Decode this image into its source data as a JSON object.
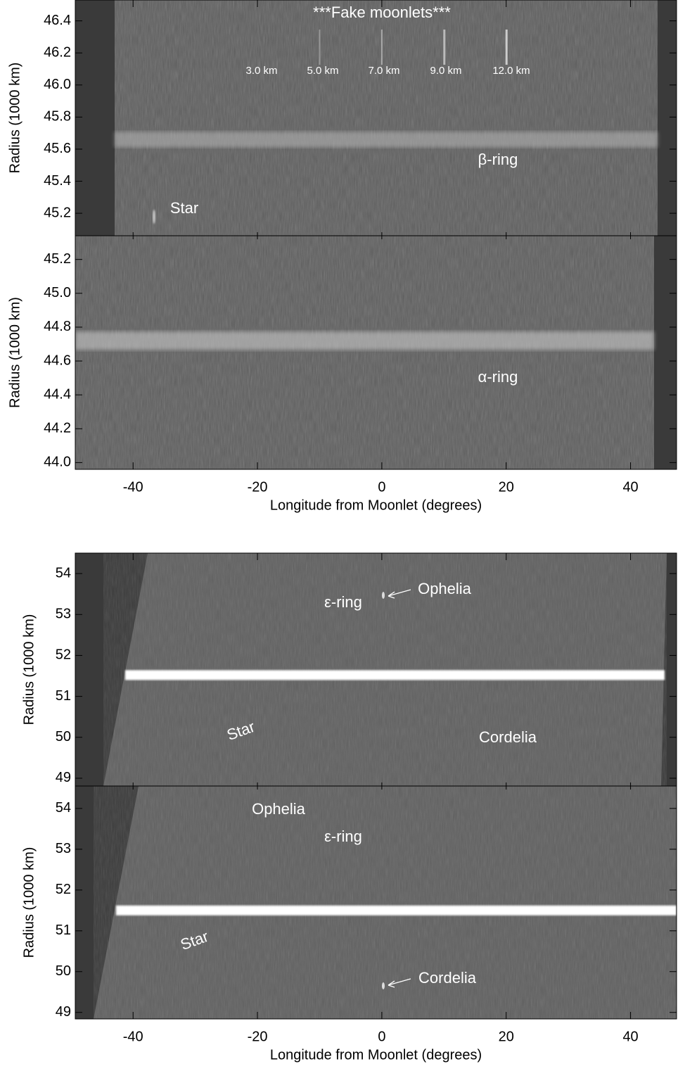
{
  "chart_data": [
    {
      "type": "image",
      "ylabel": "Radius (1000 km)",
      "title": "***Fake moonlets***",
      "annotations": [
        "3.0 km",
        "5.0 km",
        "7.0 km",
        "9.0 km",
        "12.0 km",
        "β-ring",
        "Star"
      ],
      "xlim": [
        -49.3,
        47.4
      ],
      "ylim": [
        45.06,
        46.53
      ],
      "yticks": [
        45.2,
        45.4,
        45.6,
        45.8,
        {
          "value": 46.0,
          "label": "46.0"
        },
        46.2,
        46.4
      ]
    },
    {
      "type": "image",
      "ylabel": "Radius (1000 km)",
      "xlabel": "Longitude from Moonlet (degrees)",
      "annotations": [
        "α-ring"
      ],
      "xlim": [
        -49.3,
        47.4
      ],
      "ylim": [
        43.96,
        45.34
      ],
      "xticks": [
        -40,
        -20,
        0,
        20,
        40
      ],
      "yticks": [
        {
          "value": 44.0,
          "label": "44.0"
        },
        44.2,
        44.4,
        44.6,
        44.8,
        {
          "value": 45.0,
          "label": "45.0"
        },
        45.2
      ]
    },
    {
      "type": "image",
      "ylabel": "Radius (1000 km)",
      "annotations": [
        "Ophelia",
        "ε-ring",
        "Star",
        "Cordelia"
      ],
      "xlim": [
        -49.3,
        47.4
      ],
      "ylim": [
        48.81,
        54.5
      ],
      "yticks": [
        49,
        50,
        51,
        52,
        53,
        54
      ]
    },
    {
      "type": "image",
      "ylabel": "Radius (1000 km)",
      "xlabel": "Longitude from Moonlet (degrees)",
      "annotations": [
        "Ophelia",
        "ε-ring",
        "Star",
        "Cordelia"
      ],
      "xlim": [
        -49.3,
        47.4
      ],
      "ylim": [
        48.84,
        54.55
      ],
      "xticks": [
        -40,
        -20,
        0,
        20,
        40
      ],
      "yticks": [
        49,
        50,
        51,
        52,
        53,
        54
      ]
    }
  ]
}
